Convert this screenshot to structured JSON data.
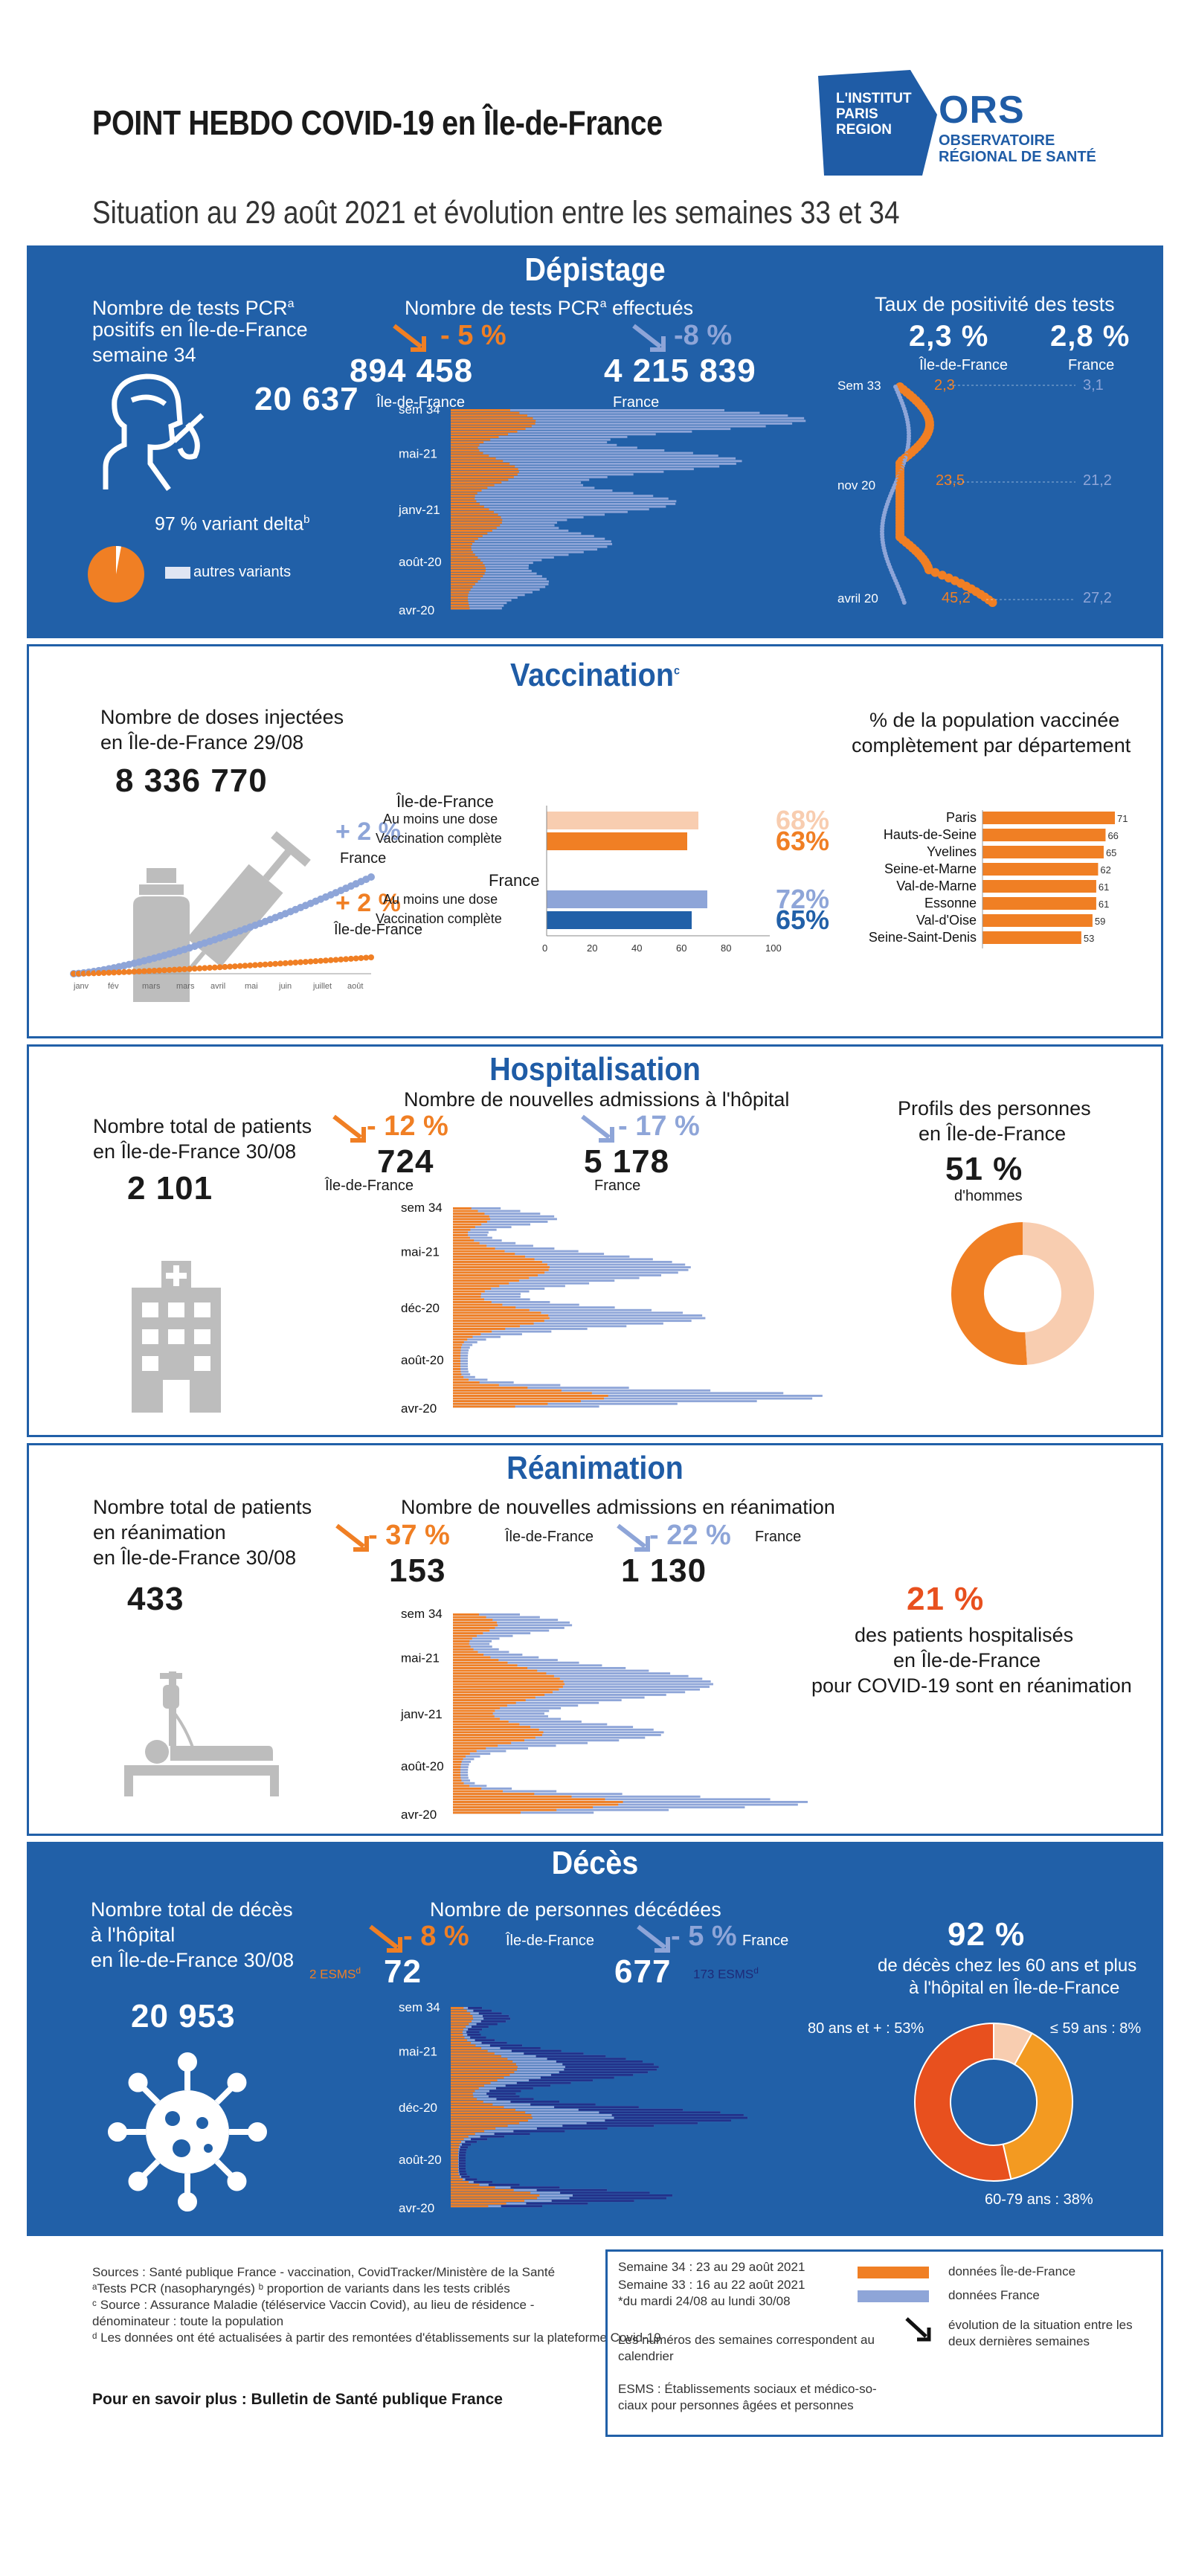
{
  "header": {
    "title": "POINT HEBDO COVID-19 en Île-de-France",
    "subtitle": "Situation au 29 août 2021 et évolution entre les semaines 33 et 34",
    "logo_line1": "L'INSTITUT",
    "logo_line2": "PARIS",
    "logo_line3": "REGION",
    "ors": "ORS",
    "ors_line1": "OBSERVATOIRE",
    "ors_line2": "RÉGIONAL DE SANTÉ"
  },
  "depistage": {
    "title": "Dépistage",
    "positifs_label_1": "Nombre de tests PCR",
    "positifs_label_sup": "a",
    "positifs_label_2": "positifs en Île-de-France",
    "positifs_label_3": "semaine 34",
    "positifs_value": "20 637",
    "delta_text": "97 % variant delta",
    "delta_sup": "b",
    "autres_variants": "autres variants",
    "tests_label": "Nombre de tests PCR",
    "tests_label_sup": "a",
    "tests_label_end": " effectués",
    "idf_change": "- 5 %",
    "fr_change": "-8 %",
    "idf_value": "894 458",
    "fr_value": "4 215 839",
    "idf_label": "Île-de-France",
    "fr_label": "France",
    "ticks": [
      "sem 34",
      "mai-21",
      "janv-21",
      "août-20",
      "avr-20"
    ],
    "taux_title": "Taux de positivité des tests",
    "taux_idf": "2,3 %",
    "taux_fr": "2,8 %",
    "taux_idf_label": "Île-de-France",
    "taux_fr_label": "France",
    "taux_ticks": [
      "Sem 33",
      "nov 20",
      "avril 20"
    ],
    "taux_values": [
      "2,3",
      "3,1",
      "23,5",
      "21,2",
      "45,2",
      "27,2"
    ]
  },
  "vaccination": {
    "title": "Vaccination",
    "title_sup": "c",
    "doses_label_1": "Nombre de doses injectées",
    "doses_label_2": "en Île-de-France 29/08",
    "doses_value": "8 336 770",
    "fr_change": "+ 2 %",
    "fr_label": "France",
    "idf_change": "+ 2 %",
    "idf_label": "Île-de-France",
    "months": [
      "janv",
      "fév",
      "mars",
      "mars",
      "avril",
      "mai",
      "juin",
      "juillet",
      "août"
    ],
    "bars_idf_title": "Île-de-France",
    "bars_fr_title": "France",
    "bar_labels": [
      "Au moins une dose",
      "Vaccination complète"
    ],
    "bars_chart": {
      "type": "bar",
      "categories": [
        "Île-de-France - Au moins une dose",
        "Île-de-France - Vaccination complète",
        "France - Au moins une dose",
        "France - Vaccination complète"
      ],
      "values": [
        68,
        63,
        72,
        65
      ],
      "value_labels": [
        "68%",
        "63%",
        "72%",
        "65%"
      ],
      "xticks": [
        "0",
        "20",
        "40",
        "60",
        "80",
        "100"
      ],
      "xlim": [
        0,
        100
      ],
      "colors": [
        "#f8cdb0",
        "#f07f24",
        "#8ea5d8",
        "#2160a8"
      ]
    },
    "dept_title_1": "% de la population vaccinée",
    "dept_title_2": "complètement par département",
    "dept_chart": {
      "type": "bar",
      "categories": [
        "Paris",
        "Hauts-de-Seine",
        "Yvelines",
        "Seine-et-Marne",
        "Val-de-Marne",
        "Essonne",
        "Val-d'Oise",
        "Seine-Saint-Denis"
      ],
      "values": [
        71,
        66,
        65,
        62,
        61,
        61,
        59,
        53
      ],
      "xlim": [
        0,
        71
      ]
    }
  },
  "hospitalisation": {
    "title": "Hospitalisation",
    "total_label_1": "Nombre total de patients",
    "total_label_2": "en Île-de-France 30/08",
    "total_value": "2 101",
    "admissions_label": "Nombre de nouvelles admissions à l'hôpital",
    "idf_change": "- 12 %",
    "fr_change": "- 17 %",
    "idf_value": "724",
    "fr_value": "5 178",
    "idf_label": "Île-de-France",
    "fr_label": "France",
    "ticks": [
      "sem 34",
      "mai-21",
      "déc-20",
      "août-20",
      "avr-20"
    ],
    "profil_label_1": "Profils des personnes",
    "profil_label_2": "en Île-de-France",
    "hommes_pct": "51 %",
    "hommes_label": "d'hommes",
    "hommes_value": 51
  },
  "reanimation": {
    "title": "Réanimation",
    "total_label_1": "Nombre total de patients",
    "total_label_2": "en réanimation",
    "total_label_3": "en Île-de-France 30/08",
    "total_value": "433",
    "admissions_label": "Nombre de nouvelles admissions en réanimation",
    "idf_change": "- 37 %",
    "fr_change": "- 22 %",
    "idf_value": "153",
    "fr_value": "1 130",
    "idf_label": "Île-de-France",
    "fr_label": "France",
    "ticks": [
      "sem 34",
      "mai-21",
      "janv-21",
      "août-20",
      "avr-20"
    ],
    "share_pct": "21 %",
    "share_line1": "des patients hospitalisés",
    "share_line2": "en Île-de-France",
    "share_line3": "pour COVID-19 sont en réanimation"
  },
  "deces": {
    "title": "Décès",
    "total_label_1": "Nombre total de décès",
    "total_label_2": "à l'hôpital",
    "total_label_3": "en Île-de-France 30/08",
    "total_value": "20 953",
    "persons_label": "Nombre de personnes décédées",
    "idf_change": "- 8 %",
    "fr_change": "- 5 %",
    "idf_value": "72",
    "fr_value": "677",
    "idf_esms": "2 ESMS",
    "fr_esms": "173 ESMS",
    "esms_sup": "d",
    "idf_label": "Île-de-France",
    "fr_label": "France",
    "ticks": [
      "sem 34",
      "mai-21",
      "déc-20",
      "août-20",
      "avr-20"
    ],
    "share_pct": "92 %",
    "share_line1": "de décès chez les 60 ans et plus",
    "share_line2": "à l'hôpital en Île-de-France",
    "age_chart": {
      "type": "pie",
      "categories": [
        "80 ans et + : 53%",
        "60-79 ans : 38%",
        "≤ 59 ans : 8%"
      ],
      "values": [
        53,
        38,
        8
      ],
      "colors": [
        "#e8501e",
        "#f39a21",
        "#f8cdb0"
      ]
    }
  },
  "footer": {
    "sources": [
      "Sources : Santé publique France - vaccination, CovidTracker/Ministère de la Santé",
      "ᵃTests PCR (nasopharyngés) ᵇ proportion de variants dans les tests criblés",
      "ᶜ Source : Assurance Maladie (téléservice Vaccin Covid), au lieu de résidence -",
      "dénominateur : toute la population",
      "ᵈ Les données ont été actualisées à partir des remontées d'établissements sur la plateforme Covid-19"
    ],
    "more": "Pour en savoir plus : Bulletin de Santé publique France",
    "sem34": "Semaine 34 :  23 au 29 août 2021",
    "sem33": "Semaine 33 :  16 au 22 août 2021",
    "note": "*du mardi 24/08 au lundi 30/08",
    "legend_idf": "données Île-de-France",
    "legend_fr": "données France",
    "legend_arrow_1": "évolution de la situation entre les",
    "legend_arrow_2": "deux dernières semaines",
    "numbers_1": "Les numéros des semaines correspondent au",
    "numbers_2": "calendrier",
    "esms_1": "ESMS : Établissements sociaux et  médico-so-",
    "esms_2": "ciaux pour personnes âgées et personnes"
  }
}
